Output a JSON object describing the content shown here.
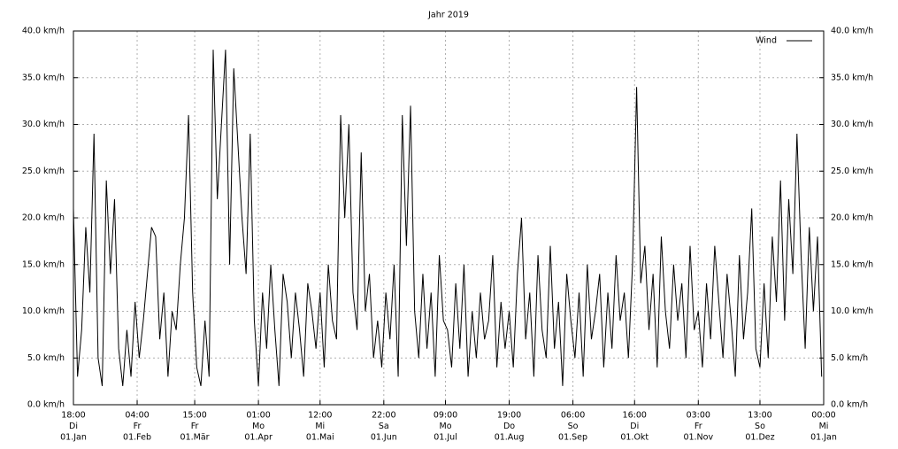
{
  "chart_data": {
    "type": "line",
    "title": "Jahr 2019",
    "x": [
      0,
      2,
      4,
      6,
      8,
      10,
      12,
      14,
      16,
      18,
      20,
      22,
      24,
      26,
      28,
      30,
      32,
      34,
      36,
      38,
      40,
      42,
      44,
      46,
      48,
      50,
      52,
      54,
      56,
      58,
      60,
      62,
      64,
      66,
      68,
      70,
      72,
      74,
      76,
      78,
      80,
      82,
      84,
      86,
      88,
      90,
      92,
      94,
      96,
      98,
      100,
      102,
      104,
      106,
      108,
      110,
      112,
      114,
      116,
      118,
      120,
      122,
      124,
      126,
      128,
      130,
      132,
      134,
      136,
      138,
      140,
      142,
      144,
      146,
      148,
      150,
      152,
      154,
      156,
      158,
      160,
      162,
      164,
      166,
      168,
      170,
      172,
      174,
      176,
      178,
      180,
      182,
      184,
      186,
      188,
      190,
      192,
      194,
      196,
      198,
      200,
      202,
      204,
      206,
      208,
      210,
      212,
      214,
      216,
      218,
      220,
      222,
      224,
      226,
      228,
      230,
      232,
      234,
      236,
      238,
      240,
      242,
      244,
      246,
      248,
      250,
      252,
      254,
      256,
      258,
      260,
      262,
      264,
      266,
      268,
      270,
      272,
      274,
      276,
      278,
      280,
      282,
      284,
      286,
      288,
      290,
      292,
      294,
      296,
      298,
      300,
      302,
      304,
      306,
      308,
      310,
      312,
      314,
      316,
      318,
      320,
      322,
      324,
      326,
      328,
      330,
      332,
      334,
      336,
      338,
      340,
      342,
      344,
      346,
      348,
      350,
      352,
      354,
      356,
      358,
      360,
      362,
      364
    ],
    "series": [
      {
        "name": "Wind",
        "color": "#000000",
        "values": [
          21,
          3,
          8,
          19,
          12,
          29,
          5,
          2,
          24,
          14,
          22,
          6,
          2,
          8,
          3,
          11,
          5,
          9,
          14,
          19,
          18,
          7,
          12,
          3,
          10,
          8,
          15,
          20,
          31,
          12,
          4,
          2,
          9,
          3,
          38,
          22,
          30,
          38,
          15,
          36,
          28,
          20,
          14,
          29,
          9,
          2,
          12,
          6,
          15,
          8,
          2,
          14,
          11,
          5,
          12,
          8,
          3,
          13,
          10,
          6,
          12,
          4,
          15,
          9,
          7,
          31,
          20,
          30,
          12,
          8,
          27,
          10,
          14,
          5,
          9,
          4,
          12,
          7,
          15,
          3,
          31,
          17,
          32,
          10,
          5,
          14,
          6,
          12,
          3,
          16,
          9,
          8,
          4,
          13,
          6,
          15,
          3,
          10,
          5,
          12,
          7,
          9,
          16,
          4,
          11,
          6,
          10,
          4,
          14,
          20,
          7,
          12,
          3,
          16,
          8,
          5,
          17,
          6,
          11,
          2,
          14,
          9,
          5,
          12,
          3,
          15,
          7,
          10,
          14,
          4,
          12,
          6,
          16,
          9,
          12,
          5,
          15,
          34,
          13,
          17,
          8,
          14,
          4,
          18,
          10,
          6,
          15,
          9,
          13,
          5,
          17,
          8,
          10,
          4,
          13,
          7,
          17,
          11,
          5,
          14,
          9,
          3,
          16,
          7,
          12,
          21,
          6,
          4,
          13,
          5,
          18,
          11,
          24,
          9,
          22,
          14,
          29,
          16,
          6,
          19,
          10,
          18,
          3
        ]
      }
    ],
    "xlim": [
      0,
      365
    ],
    "xticks": [
      {
        "value": 0,
        "label": [
          "18:00",
          "Di",
          "01.Jan"
        ]
      },
      {
        "value": 31,
        "label": [
          "04:00",
          "Fr",
          "01.Feb"
        ]
      },
      {
        "value": 59,
        "label": [
          "15:00",
          "Fr",
          "01.Mär"
        ]
      },
      {
        "value": 90,
        "label": [
          "01:00",
          "Mo",
          "01.Apr"
        ]
      },
      {
        "value": 120,
        "label": [
          "12:00",
          "Mi",
          "01.Mai"
        ]
      },
      {
        "value": 151,
        "label": [
          "22:00",
          "Sa",
          "01.Jun"
        ]
      },
      {
        "value": 181,
        "label": [
          "09:00",
          "Mo",
          "01.Jul"
        ]
      },
      {
        "value": 212,
        "label": [
          "19:00",
          "Do",
          "01.Aug"
        ]
      },
      {
        "value": 243,
        "label": [
          "06:00",
          "So",
          "01.Sep"
        ]
      },
      {
        "value": 273,
        "label": [
          "16:00",
          "Di",
          "01.Okt"
        ]
      },
      {
        "value": 304,
        "label": [
          "03:00",
          "Fr",
          "01.Nov"
        ]
      },
      {
        "value": 334,
        "label": [
          "13:00",
          "So",
          "01.Dez"
        ]
      },
      {
        "value": 365,
        "label": [
          "00:00",
          "Mi",
          "01.Jan"
        ]
      }
    ],
    "ylim": [
      0,
      40
    ],
    "yticks": [
      {
        "value": 0,
        "label": "0.0 km/h"
      },
      {
        "value": 5,
        "label": "5.0 km/h"
      },
      {
        "value": 10,
        "label": "10.0 km/h"
      },
      {
        "value": 15,
        "label": "15.0 km/h"
      },
      {
        "value": 20,
        "label": "20.0 km/h"
      },
      {
        "value": 25,
        "label": "25.0 km/h"
      },
      {
        "value": 30,
        "label": "30.0 km/h"
      },
      {
        "value": 35,
        "label": "35.0 km/h"
      },
      {
        "value": 40,
        "label": "40.0 km/h"
      }
    ],
    "grid": true,
    "legend": "top-right"
  }
}
